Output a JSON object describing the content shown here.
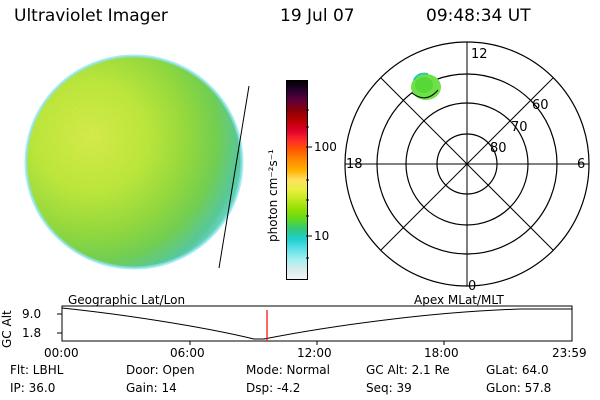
{
  "header": {
    "title": "Ultraviolet Imager",
    "date": "19 Jul 07",
    "time": "09:48:34 UT"
  },
  "colorbar": {
    "unit": "photon cm⁻²s⁻¹",
    "tick_100": "100",
    "tick_10": "10",
    "colors": [
      "#000000",
      "#2a0030",
      "#60003a",
      "#8a0008",
      "#b80000",
      "#e0002a",
      "#ff2a2a",
      "#ff5a00",
      "#ff8a00",
      "#ffb000",
      "#ffe060",
      "#e8f040",
      "#c0e820",
      "#90e000",
      "#60d820",
      "#30c880",
      "#20d0d0",
      "#60e0e8",
      "#a0f0f0",
      "#d8ecec",
      "#f4f4f4"
    ]
  },
  "polar": {
    "label_12": "12",
    "label_18": "18",
    "label_6": "6",
    "label_0": "0",
    "label_60": "60",
    "label_70": "70",
    "label_80": "80"
  },
  "timeline": {
    "left_title": "Geographic Lat/Lon",
    "right_title": "Apex  MLat/MLT",
    "ylabel": "GC Alt",
    "ytick_top": "9.0",
    "ytick_bottom": "1.8",
    "x_ticks": [
      "00:00",
      "06:00",
      "12:00",
      "18:00",
      "23:59"
    ],
    "cursor_color": "#ff0000"
  },
  "info": {
    "flt": "Flt: LBHL",
    "ip": "IP: 36.0",
    "door": "Door: Open",
    "gain": "Gain: 14",
    "mode": "Mode: Normal",
    "dsp": "Dsp:    -4.2",
    "gcalt": "GC Alt: 2.1 Re",
    "seq": "Seq: 39",
    "glat": "GLat:   64.0",
    "glon": "GLon:   57.8"
  }
}
